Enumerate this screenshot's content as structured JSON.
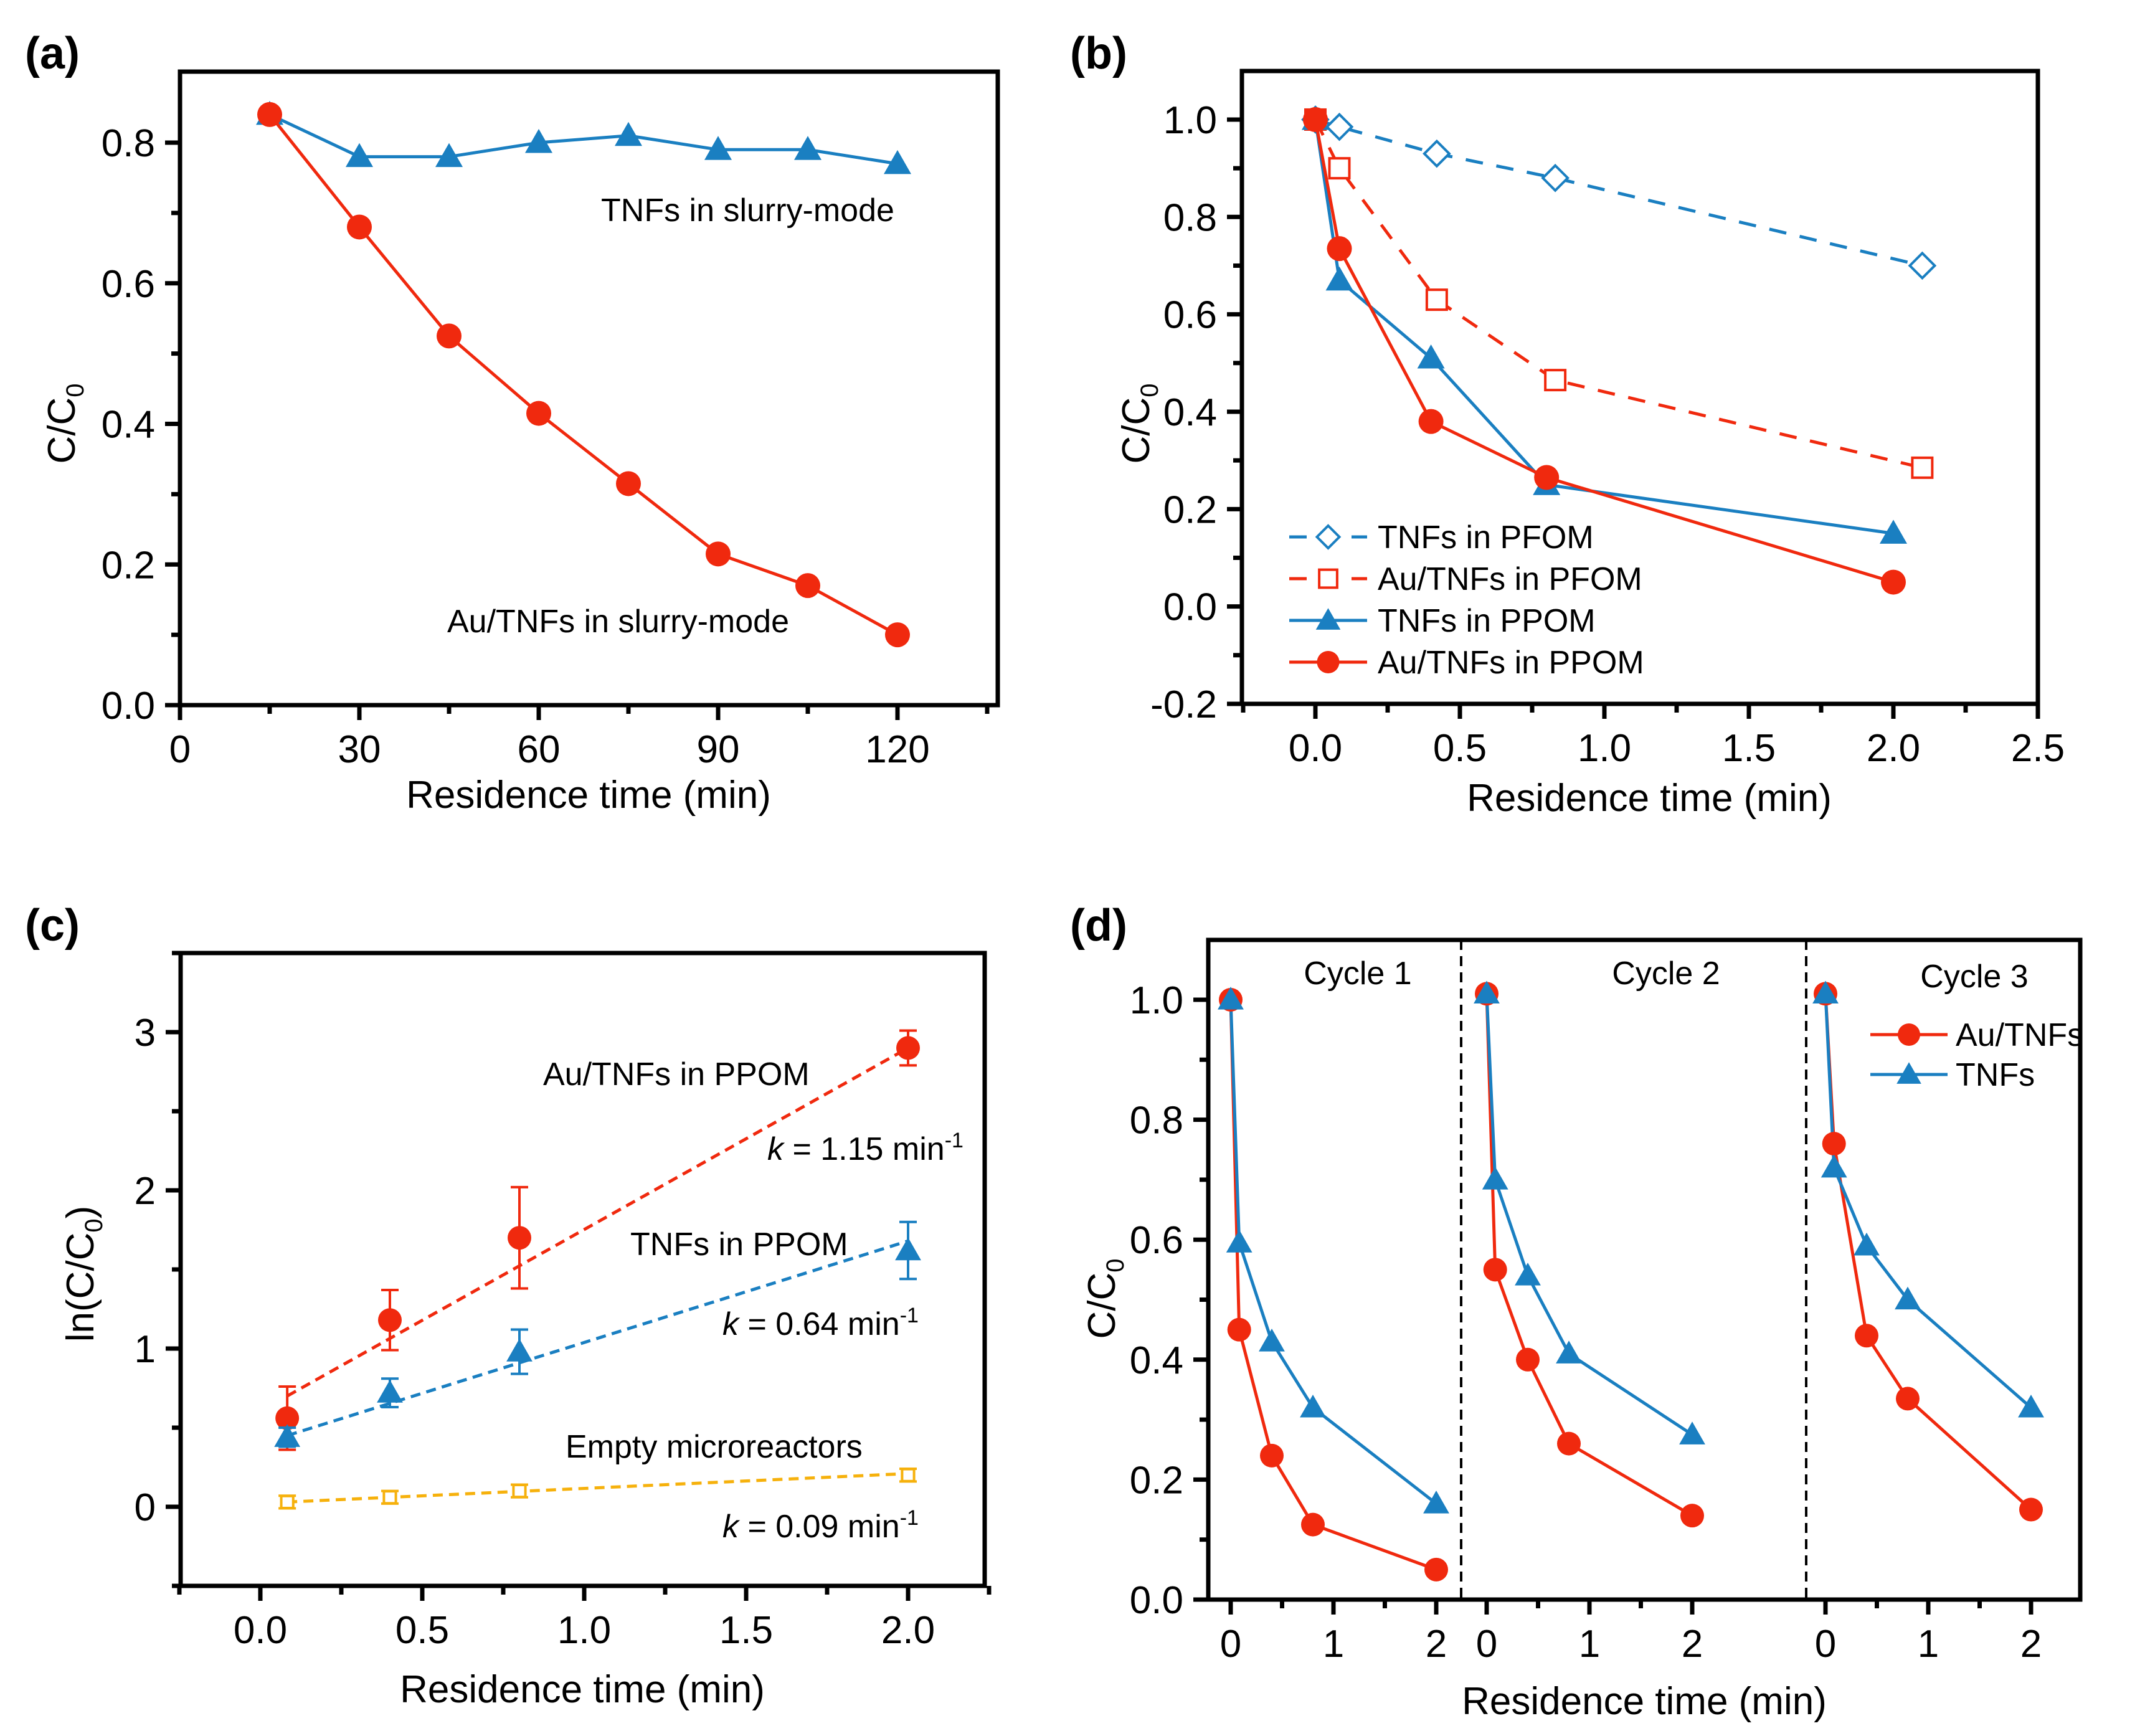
{
  "chart_data": [
    {
      "panel": "(a)",
      "type": "line",
      "title": "",
      "xlabel": "Residence time (min)",
      "ylabel": "C/C0",
      "xlim": [
        0,
        135
      ],
      "ylim": [
        0.0,
        0.9
      ],
      "xticks": [
        "0",
        "30",
        "60",
        "90",
        "120"
      ],
      "yticks": [
        "0.0",
        "0.2",
        "0.4",
        "0.6",
        "0.8"
      ],
      "series": [
        {
          "name": "TNFs in slurry-mode",
          "color": "#1a7fc1",
          "marker": "triangle-filled",
          "line": "solid",
          "x": [
            15,
            30,
            45,
            60,
            75,
            90,
            105,
            120
          ],
          "y": [
            0.84,
            0.78,
            0.78,
            0.8,
            0.81,
            0.79,
            0.79,
            0.77
          ]
        },
        {
          "name": "Au/TNFs in slurry-mode",
          "color": "#f0290e",
          "marker": "circle-filled",
          "line": "solid",
          "x": [
            15,
            30,
            45,
            60,
            75,
            90,
            105,
            120
          ],
          "y": [
            0.84,
            0.68,
            0.525,
            0.415,
            0.315,
            0.215,
            0.17,
            0.1
          ]
        }
      ],
      "annotations": [
        {
          "text": "TNFs in slurry-mode",
          "x": 92,
          "y": 0.7
        },
        {
          "text": "Au/TNFs in slurry-mode",
          "x": 75,
          "y": 0.115
        }
      ]
    },
    {
      "panel": "(b)",
      "type": "line",
      "title": "",
      "xlabel": "Residence time (min)",
      "ylabel": "C/C0",
      "xlim": [
        -0.25,
        2.5
      ],
      "ylim": [
        -0.2,
        1.1
      ],
      "xticks": [
        "0.0",
        "0.5",
        "1.0",
        "1.5",
        "2.0",
        "2.5"
      ],
      "yticks": [
        "-0.2",
        "0.0",
        "0.2",
        "0.4",
        "0.6",
        "0.8",
        "1.0"
      ],
      "legend": "bottom-left",
      "series": [
        {
          "name": "TNFs in PFOM",
          "color": "#1a7fc1",
          "marker": "diamond-open",
          "line": "dashed",
          "x": [
            0,
            0.083,
            0.42,
            0.83,
            2.1
          ],
          "y": [
            1.0,
            0.985,
            0.93,
            0.88,
            0.7
          ]
        },
        {
          "name": "Au/TNFs in PFOM",
          "color": "#f0290e",
          "marker": "square-open",
          "line": "dashed",
          "x": [
            0,
            0.083,
            0.42,
            0.83,
            2.1
          ],
          "y": [
            1.0,
            0.9,
            0.63,
            0.465,
            0.285
          ]
        },
        {
          "name": "TNFs in PPOM",
          "color": "#1a7fc1",
          "marker": "triangle-filled",
          "line": "solid",
          "x": [
            0,
            0.083,
            0.4,
            0.8,
            2.0
          ],
          "y": [
            1.0,
            0.67,
            0.51,
            0.25,
            0.15
          ]
        },
        {
          "name": "Au/TNFs in PPOM",
          "color": "#f0290e",
          "marker": "circle-filled",
          "line": "solid",
          "x": [
            0,
            0.083,
            0.4,
            0.8,
            2.0
          ],
          "y": [
            1.0,
            0.735,
            0.38,
            0.265,
            0.05
          ]
        }
      ]
    },
    {
      "panel": "(c)",
      "type": "scatter",
      "title": "",
      "xlabel": "Residence time (min)",
      "ylabel": "ln(C/C0)",
      "xlim": [
        -0.25,
        2.25
      ],
      "ylim": [
        -0.5,
        3.5
      ],
      "xticks": [
        "0.0",
        "0.5",
        "1.0",
        "1.5",
        "2.0"
      ],
      "yticks": [
        "0",
        "1",
        "2",
        "3"
      ],
      "series": [
        {
          "name": "Au/TNFs in PPOM",
          "color": "#f0290e",
          "marker": "circle-filled",
          "x": [
            0.083,
            0.4,
            0.8,
            2.0
          ],
          "y": [
            0.56,
            1.18,
            1.7,
            2.9
          ],
          "err": [
            0.2,
            0.19,
            0.32,
            0.11
          ],
          "fit": {
            "slope": 1.15,
            "x": [
              0.083,
              2.0
            ],
            "y": [
              0.7,
              2.9
            ]
          },
          "label": "Au/TNFs in PPOM",
          "k_label": "k = 1.15 min-1",
          "k_value": "1.15"
        },
        {
          "name": "TNFs in PPOM",
          "color": "#1a7fc1",
          "marker": "triangle-filled",
          "x": [
            0.083,
            0.4,
            0.8,
            2.0
          ],
          "y": [
            0.44,
            0.72,
            0.98,
            1.62
          ],
          "err": [
            0.06,
            0.09,
            0.14,
            0.18
          ],
          "fit": {
            "slope": 0.64,
            "x": [
              0.083,
              2.0
            ],
            "y": [
              0.45,
              1.68
            ]
          },
          "label": "TNFs in PPOM",
          "k_label": "k = 0.64 min-1",
          "k_value": "0.64"
        },
        {
          "name": "Empty microreactors",
          "color": "#f6b10c",
          "marker": "square-open",
          "x": [
            0.083,
            0.4,
            0.8,
            2.0
          ],
          "y": [
            0.03,
            0.06,
            0.1,
            0.2
          ],
          "err": [
            0.04,
            0.04,
            0.04,
            0.04
          ],
          "fit": {
            "slope": 0.09,
            "x": [
              0.083,
              2.0
            ],
            "y": [
              0.03,
              0.21
            ]
          },
          "label": "Empty microreactors",
          "k_label": "k = 0.09 min-1",
          "k_value": "0.09"
        }
      ],
      "annotations": [
        {
          "text": "Au/TNFs in PPOM",
          "x": 0.9,
          "y": 2.75
        },
        {
          "text": "k = 1.15 min-1",
          "x": 1.6,
          "y": 2.27
        },
        {
          "text": "TNFs in PPOM",
          "x": 1.15,
          "y": 1.65
        },
        {
          "text": "k = 0.64 min-1",
          "x": 1.45,
          "y": 1.18
        },
        {
          "text": "Empty microreactors",
          "x": 0.95,
          "y": 0.35
        },
        {
          "text": "k = 0.09 min-1",
          "x": 1.45,
          "y": -0.09
        }
      ]
    },
    {
      "panel": "(d)",
      "type": "line",
      "title": "",
      "xlabel": "Residence time (min)",
      "ylabel": "C/C0",
      "ylim": [
        0.0,
        1.1
      ],
      "xticks_per_cycle": [
        "0",
        "1",
        "2"
      ],
      "yticks": [
        "0.0",
        "0.2",
        "0.4",
        "0.6",
        "0.8",
        "1.0"
      ],
      "cycles": [
        "Cycle 1",
        "Cycle 2",
        "Cycle 3"
      ],
      "legend": "top-right",
      "series": [
        {
          "name": "Au/TNFs",
          "color": "#f0290e",
          "marker": "circle-filled",
          "x": [
            0,
            0.083,
            0.4,
            0.8,
            2.0
          ],
          "cycle_values": [
            [
              1.0,
              0.45,
              0.24,
              0.125,
              0.05
            ],
            [
              1.01,
              0.55,
              0.4,
              0.26,
              0.14
            ],
            [
              1.01,
              0.76,
              0.44,
              0.335,
              0.15
            ]
          ]
        },
        {
          "name": "TNFs",
          "color": "#1a7fc1",
          "marker": "triangle-filled",
          "x": [
            0,
            0.083,
            0.4,
            0.8,
            2.0
          ],
          "cycle_values": [
            [
              1.0,
              0.595,
              0.43,
              0.32,
              0.16
            ],
            [
              1.01,
              0.7,
              0.54,
              0.41,
              0.275
            ],
            [
              1.01,
              0.72,
              0.59,
              0.5,
              0.32
            ]
          ]
        }
      ]
    }
  ],
  "panel_labels": [
    "(a)",
    "(b)",
    "(c)",
    "(d)"
  ],
  "axis_labels": {
    "x": "Residence time (min)",
    "y_conc": "C/C",
    "y_conc_sub": "0",
    "y_ln_pre": "ln(C/C",
    "y_ln_sub": "0",
    "y_ln_post": ")"
  },
  "k_texts": {
    "k": "k",
    "eq_115": " = 1.15 min",
    "eq_064": " = 0.64 min",
    "eq_009": " = 0.09 min",
    "sup": "-1"
  }
}
